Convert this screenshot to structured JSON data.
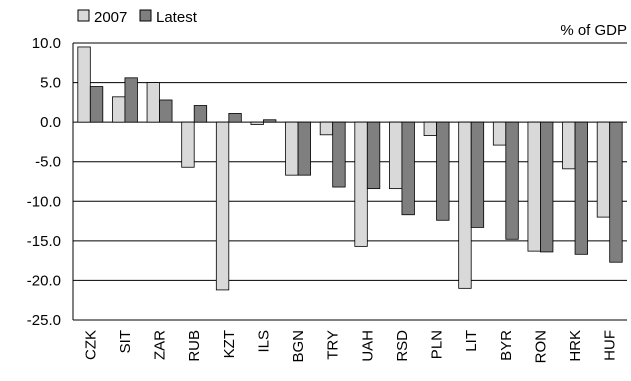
{
  "chart_data": {
    "type": "bar",
    "categories": [
      "CZK",
      "SIT",
      "ZAR",
      "RUB",
      "KZT",
      "ILS",
      "BGN",
      "TRY",
      "UAH",
      "RSD",
      "PLN",
      "LIT",
      "BYR",
      "RON",
      "HRK",
      "HUF"
    ],
    "series": [
      {
        "name": "2007",
        "color": "#d9d9d9",
        "values": [
          9.5,
          3.2,
          5.0,
          -5.7,
          -21.2,
          -0.3,
          -6.7,
          -1.6,
          -15.7,
          -8.4,
          -1.7,
          -21.0,
          -2.9,
          -16.3,
          -5.9,
          -12.0
        ]
      },
      {
        "name": "Latest",
        "color": "#7f7f7f",
        "values": [
          4.5,
          5.6,
          2.8,
          2.1,
          1.1,
          0.3,
          -6.7,
          -8.2,
          -8.4,
          -11.7,
          -12.4,
          -13.3,
          -14.8,
          -16.4,
          -16.7,
          -17.7
        ]
      }
    ],
    "ylim": [
      -25,
      10
    ],
    "yticks": [
      10,
      5,
      0,
      -5,
      -10,
      -15,
      -20,
      -25
    ],
    "ytick_labels": [
      "10.0",
      "5.0",
      "0.0",
      "-5.0",
      "-10.0",
      "-15.0",
      "-20.0",
      "-25.0"
    ],
    "unit_label": "% of GDP",
    "legend_position": "top-left",
    "grid": "horizontal"
  }
}
